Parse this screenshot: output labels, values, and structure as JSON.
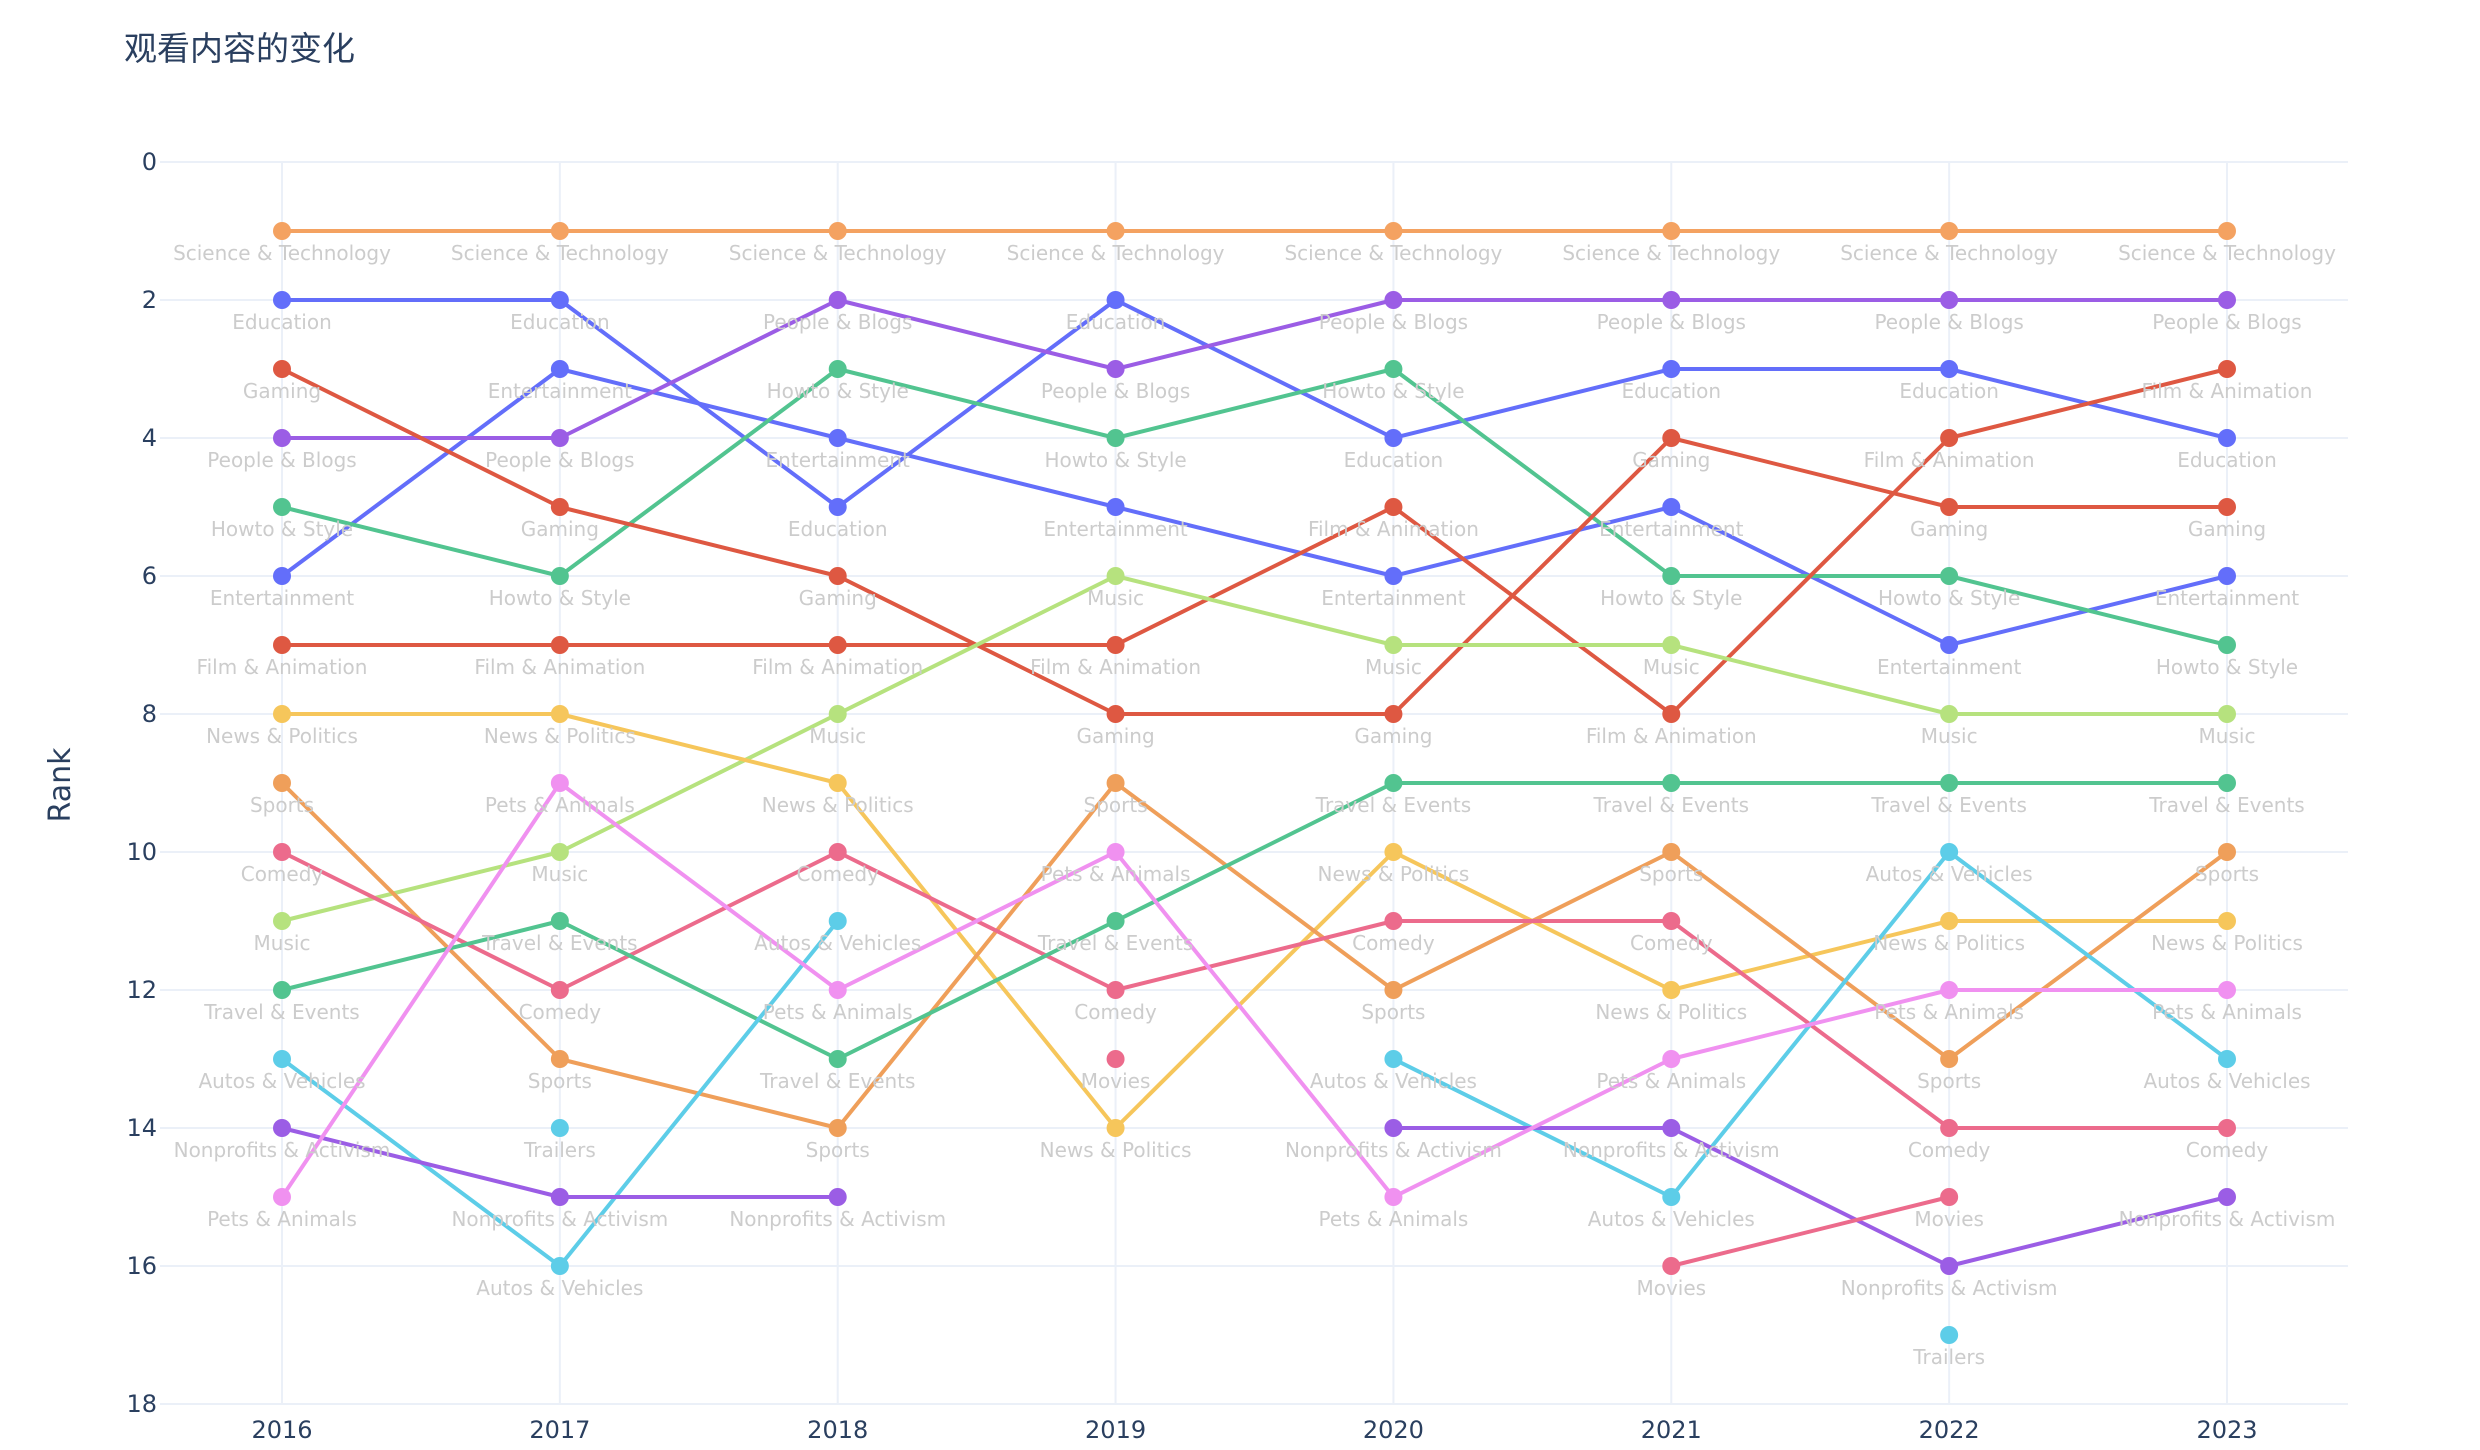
{
  "chart_data": {
    "type": "line",
    "title": "观看内容的变化",
    "xlabel": "",
    "ylabel": "Rank",
    "x": [
      2016,
      2017,
      2018,
      2019,
      2020,
      2021,
      2022,
      2023
    ],
    "x_tick_labels": [
      "2016",
      "2017",
      "2018",
      "2019",
      "2020",
      "2021",
      "2022",
      "2023"
    ],
    "ylim": [
      0,
      18
    ],
    "y_reversed": true,
    "y_ticks": [
      0,
      2,
      4,
      6,
      8,
      10,
      12,
      14,
      16,
      18
    ],
    "y_tick_labels": [
      "0",
      "2",
      "4",
      "6",
      "8",
      "10",
      "12",
      "14",
      "16",
      "18"
    ],
    "grid": true,
    "legend": "none",
    "series": [
      {
        "name": "Science & Technology",
        "color": "#F4A261",
        "values": [
          1,
          1,
          1,
          1,
          1,
          1,
          1,
          1
        ]
      },
      {
        "name": "Education",
        "color": "#636EFA",
        "values": [
          2,
          2,
          5,
          2,
          4,
          3,
          3,
          4
        ]
      },
      {
        "name": "Entertainment",
        "color": "#636EFA",
        "values": [
          6,
          3,
          4,
          5,
          6,
          5,
          7,
          6
        ]
      },
      {
        "name": "People & Blogs",
        "color": "#9B5DE5",
        "values": [
          4,
          4,
          2,
          3,
          2,
          2,
          2,
          2
        ]
      },
      {
        "name": "Howto & Style",
        "color": "#52C490",
        "values": [
          5,
          6,
          3,
          4,
          3,
          6,
          6,
          7
        ]
      },
      {
        "name": "Gaming",
        "color": "#DE5842",
        "values": [
          3,
          5,
          6,
          8,
          8,
          4,
          5,
          5
        ]
      },
      {
        "name": "Film & Animation",
        "color": "#DE5842",
        "values": [
          7,
          7,
          7,
          7,
          5,
          8,
          4,
          3
        ]
      },
      {
        "name": "Music",
        "color": "#B6E27E",
        "values": [
          11,
          10,
          8,
          6,
          7,
          7,
          8,
          8
        ]
      },
      {
        "name": "News & Politics",
        "color": "#F6C65B",
        "values": [
          8,
          8,
          9,
          14,
          10,
          12,
          11,
          11
        ]
      },
      {
        "name": "Sports",
        "color": "#EF9F5A",
        "values": [
          9,
          13,
          14,
          9,
          12,
          10,
          13,
          10
        ]
      },
      {
        "name": "Comedy",
        "color": "#EC6B8C",
        "values": [
          10,
          12,
          10,
          12,
          11,
          11,
          14,
          14
        ]
      },
      {
        "name": "Travel & Events",
        "color": "#52C490",
        "values": [
          12,
          11,
          13,
          11,
          9,
          9,
          9,
          9
        ]
      },
      {
        "name": "Autos & Vehicles",
        "color": "#5DCDE8",
        "values": [
          13,
          16,
          11,
          null,
          13,
          15,
          10,
          13
        ]
      },
      {
        "name": "Nonprofits & Activism",
        "color": "#9B5DE5",
        "values": [
          14,
          15,
          15,
          null,
          14,
          14,
          16,
          15
        ]
      },
      {
        "name": "Pets & Animals",
        "color": "#F091F0",
        "values": [
          15,
          9,
          12,
          10,
          15,
          13,
          12,
          12
        ]
      },
      {
        "name": "Trailers",
        "color": "#5DCDE8",
        "values": [
          null,
          14,
          null,
          null,
          null,
          null,
          17,
          null
        ]
      },
      {
        "name": "Movies",
        "color": "#EC6B8C",
        "values": [
          null,
          null,
          null,
          13,
          null,
          16,
          15,
          null
        ]
      }
    ]
  }
}
